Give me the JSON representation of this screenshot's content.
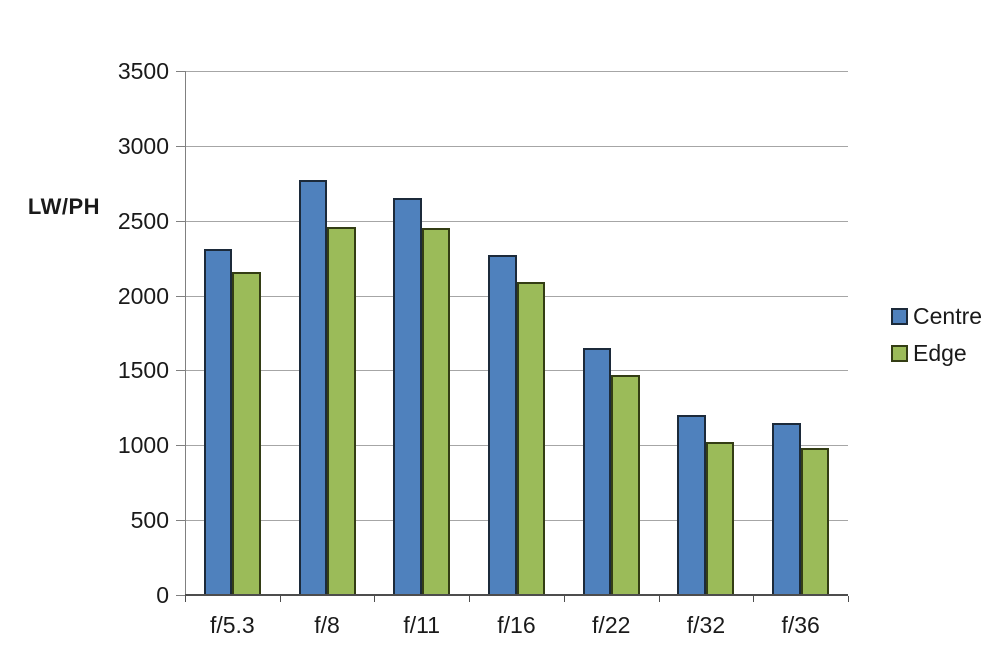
{
  "chart_data": {
    "type": "bar",
    "title": "",
    "ylabel": "LW/PH",
    "xlabel": "",
    "categories": [
      "f/5.3",
      "f/8",
      "f/11",
      "f/16",
      "f/22",
      "f/32",
      "f/36"
    ],
    "series": [
      {
        "name": "Centre",
        "color": "#4F81BD",
        "border_color": "#1C2A3A",
        "values": [
          2310,
          2770,
          2650,
          2270,
          1650,
          1200,
          1150
        ]
      },
      {
        "name": "Edge",
        "color": "#9BBB59",
        "border_color": "#333D14",
        "values": [
          2160,
          2460,
          2450,
          2090,
          1470,
          1020,
          980
        ]
      }
    ],
    "ylim": [
      0,
      3500
    ],
    "ytick_step": 500,
    "ytick_labels": [
      "0",
      "500",
      "1000",
      "1500",
      "2000",
      "2500",
      "3000",
      "3500"
    ],
    "grid": true,
    "legend_position": "right",
    "colors": {
      "gridline": "#A6A6A6",
      "axis": "#808080",
      "baseline": "#4D4D4D",
      "text": "#1A1A1A",
      "background": "#FFFFFF"
    }
  }
}
